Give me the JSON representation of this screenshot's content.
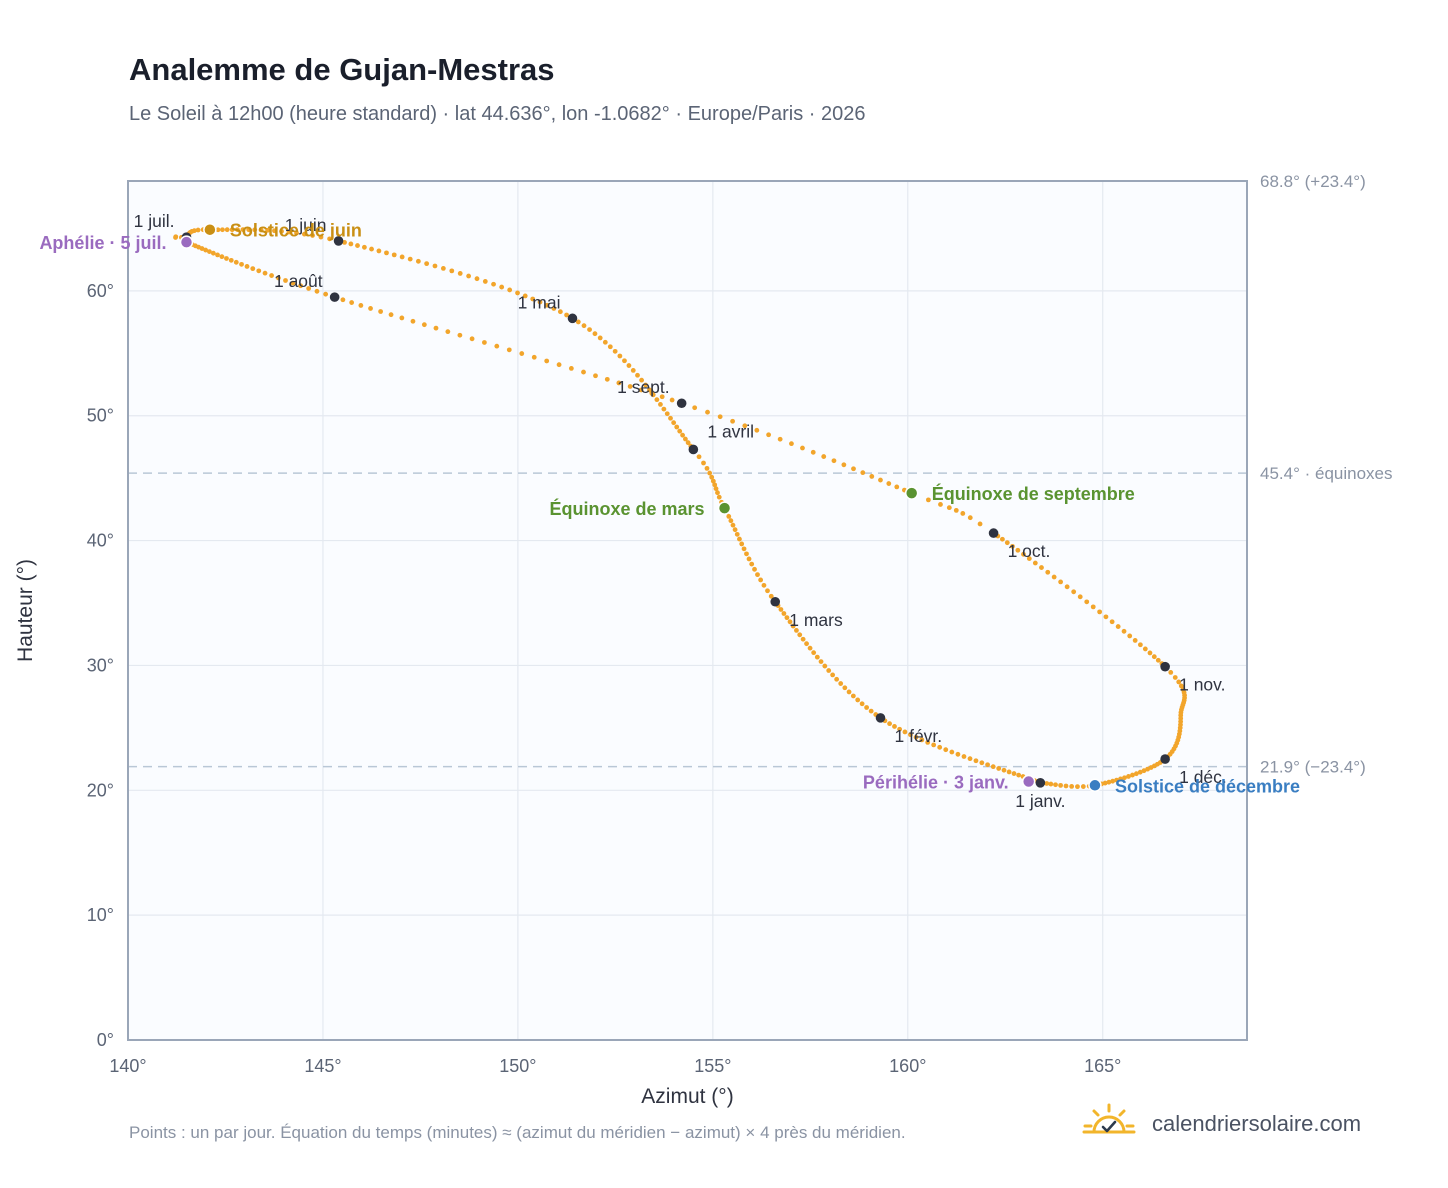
{
  "header": {
    "title": "Analemme de Gujan-Mestras",
    "subtitle": "Le Soleil à 12h00 (heure standard) · lat 44.636°, lon -1.0682° · Europe/Paris · 2026"
  },
  "footer": {
    "note": "Points : un par jour. Équation du temps (minutes) ≈ (azimut du méridien − azimut) × 4 près du méridien.",
    "brand": "calendriersolaire.com",
    "brand_icon": "sun-check-icon"
  },
  "colors": {
    "curve": "#f2a52b",
    "month_marker": "#2f3340",
    "june_solstice": "#c98f14",
    "december_solstice": "#3a7ec2",
    "equinox": "#5a9331",
    "apsis": "#9a6bbf",
    "plot_bg": "#fafcff",
    "grid": "#e4e9f0",
    "frame": "#9aa6b8",
    "reference_line": "#b9c7d6"
  },
  "chart_data": {
    "type": "scatter",
    "title": "Analemme de Gujan-Mestras",
    "xlabel": "Azimut (°)",
    "ylabel": "Hauteur (°)",
    "xlim": [
      140,
      168.7
    ],
    "ylim": [
      0,
      68.8
    ],
    "xticks": [
      140,
      145,
      150,
      155,
      160,
      165
    ],
    "xtick_labels": [
      "140°",
      "145°",
      "150°",
      "155°",
      "160°",
      "165°"
    ],
    "yticks": [
      0,
      10,
      20,
      30,
      40,
      50,
      60
    ],
    "ytick_labels": [
      "0°",
      "10°",
      "20°",
      "30°",
      "40°",
      "50°",
      "60°"
    ],
    "grid": true,
    "reference_lines": [
      {
        "y": 68.8,
        "label": "68.8° (+23.4°)"
      },
      {
        "y": 45.4,
        "label": "45.4° · équinoxes"
      },
      {
        "y": 21.9,
        "label": "21.9° (−23.4°)"
      }
    ],
    "analemma": [
      {
        "day": 1,
        "azimuth": 163.4,
        "altitude": 20.6
      },
      {
        "day": 32,
        "azimuth": 159.3,
        "altitude": 25.8
      },
      {
        "day": 60,
        "azimuth": 156.6,
        "altitude": 35.1
      },
      {
        "day": 79,
        "azimuth": 155.3,
        "altitude": 42.6
      },
      {
        "day": 91,
        "azimuth": 154.5,
        "altitude": 47.3
      },
      {
        "day": 121,
        "azimuth": 151.4,
        "altitude": 57.8
      },
      {
        "day": 152,
        "azimuth": 145.4,
        "altitude": 64.0
      },
      {
        "day": 172,
        "azimuth": 142.1,
        "altitude": 64.9
      },
      {
        "day": 182,
        "azimuth": 141.5,
        "altitude": 64.3
      },
      {
        "day": 186,
        "azimuth": 141.5,
        "altitude": 63.9
      },
      {
        "day": 213,
        "azimuth": 145.3,
        "altitude": 59.5
      },
      {
        "day": 244,
        "azimuth": 154.2,
        "altitude": 51.0
      },
      {
        "day": 266,
        "azimuth": 160.1,
        "altitude": 43.8
      },
      {
        "day": 274,
        "azimuth": 162.2,
        "altitude": 40.6
      },
      {
        "day": 305,
        "azimuth": 166.6,
        "altitude": 29.9
      },
      {
        "day": 320,
        "azimuth": 167.0,
        "altitude": 26.0
      },
      {
        "day": 335,
        "azimuth": 166.6,
        "altitude": 22.5
      },
      {
        "day": 355,
        "azimuth": 164.8,
        "altitude": 20.4
      },
      {
        "day": 366,
        "azimuth": 163.4,
        "altitude": 20.6
      }
    ],
    "months": [
      {
        "label": "1 janv.",
        "azimuth": 163.4,
        "altitude": 20.6,
        "label_pos": "below"
      },
      {
        "label": "1 févr.",
        "azimuth": 159.3,
        "altitude": 25.8,
        "label_pos": "below-right"
      },
      {
        "label": "1 mars",
        "azimuth": 156.6,
        "altitude": 35.1,
        "label_pos": "below-right"
      },
      {
        "label": "1 avril",
        "azimuth": 154.5,
        "altitude": 47.3,
        "label_pos": "above-right"
      },
      {
        "label": "1 mai",
        "azimuth": 151.4,
        "altitude": 57.8,
        "label_pos": "above-left"
      },
      {
        "label": "1 juin",
        "azimuth": 145.4,
        "altitude": 64.0,
        "label_pos": "above-left"
      },
      {
        "label": "1 juil.",
        "azimuth": 141.5,
        "altitude": 64.3,
        "label_pos": "above-left"
      },
      {
        "label": "1 août",
        "azimuth": 145.3,
        "altitude": 59.5,
        "label_pos": "above-left"
      },
      {
        "label": "1 sept.",
        "azimuth": 154.2,
        "altitude": 51.0,
        "label_pos": "above-left"
      },
      {
        "label": "1 oct.",
        "azimuth": 162.2,
        "altitude": 40.6,
        "label_pos": "below-right"
      },
      {
        "label": "1 nov.",
        "azimuth": 166.6,
        "altitude": 29.9,
        "label_pos": "below-right"
      },
      {
        "label": "1 déc.",
        "azimuth": 166.6,
        "altitude": 22.5,
        "label_pos": "below-right"
      }
    ],
    "events": [
      {
        "label": "Solstice de juin",
        "azimuth": 142.1,
        "altitude": 64.9,
        "kind": "june_solstice",
        "label_pos": "right"
      },
      {
        "label": "Aphélie · 5 juil.",
        "azimuth": 141.5,
        "altitude": 63.9,
        "kind": "apsis",
        "label_pos": "left"
      },
      {
        "label": "Équinoxe de mars",
        "azimuth": 155.3,
        "altitude": 42.6,
        "kind": "equinox",
        "label_pos": "left"
      },
      {
        "label": "Équinoxe de septembre",
        "azimuth": 160.1,
        "altitude": 43.8,
        "kind": "equinox",
        "label_pos": "right"
      },
      {
        "label": "Périhélie · 3 janv.",
        "azimuth": 163.1,
        "altitude": 20.7,
        "kind": "apsis",
        "label_pos": "left"
      },
      {
        "label": "Solstice de décembre",
        "azimuth": 164.8,
        "altitude": 20.4,
        "kind": "december_solstice",
        "label_pos": "right"
      }
    ]
  }
}
